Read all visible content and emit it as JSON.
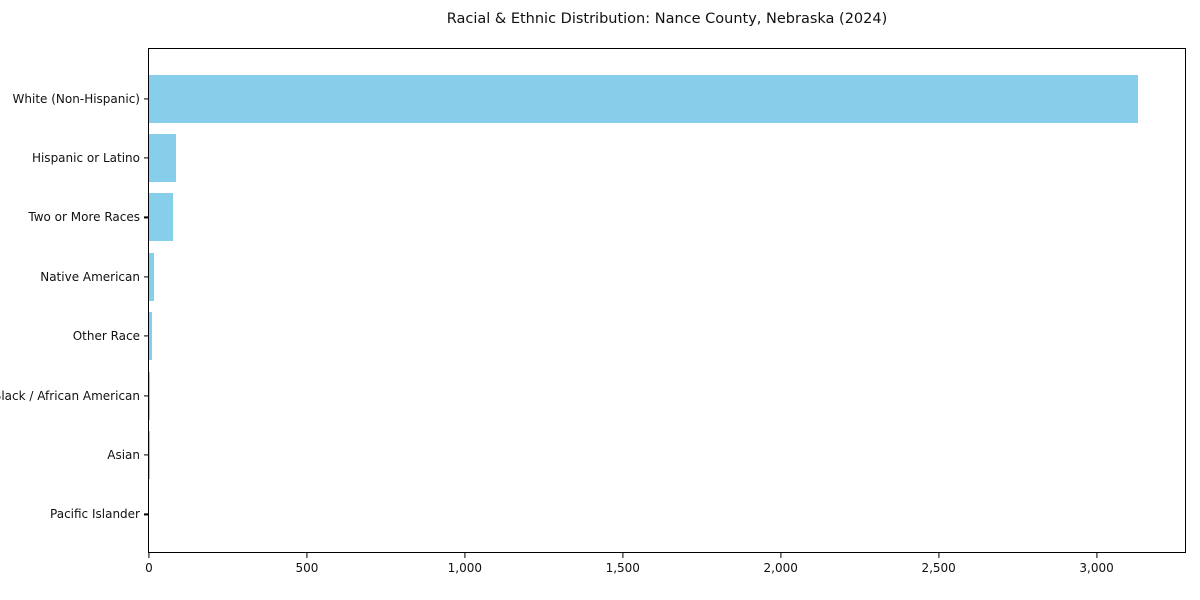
{
  "title": "Racial & Ethnic Distribution: Nance County, Nebraska (2024)",
  "colors": {
    "bar": "#87CEEB",
    "axis": "#000000",
    "background": "#FFFFFF",
    "text": "#111111"
  },
  "chart_data": {
    "type": "bar",
    "orientation": "horizontal",
    "title": "Racial & Ethnic Distribution: Nance County, Nebraska (2024)",
    "xlabel": "",
    "ylabel": "",
    "categories": [
      "White (Non-Hispanic)",
      "Hispanic or Latino",
      "Two or More Races",
      "Native American",
      "Other Race",
      "Black / African American",
      "Asian",
      "Pacific Islander"
    ],
    "values": [
      3130,
      85,
      76,
      15,
      10,
      3,
      2,
      0
    ],
    "xlim": [
      0,
      3280
    ],
    "xticks": [
      0,
      500,
      1000,
      1500,
      2000,
      2500,
      3000
    ],
    "xtick_labels": [
      "0",
      "500",
      "1,000",
      "1,500",
      "2,000",
      "2,500",
      "3,000"
    ],
    "grid": false,
    "legend": null,
    "bar_color": "#87CEEB"
  }
}
